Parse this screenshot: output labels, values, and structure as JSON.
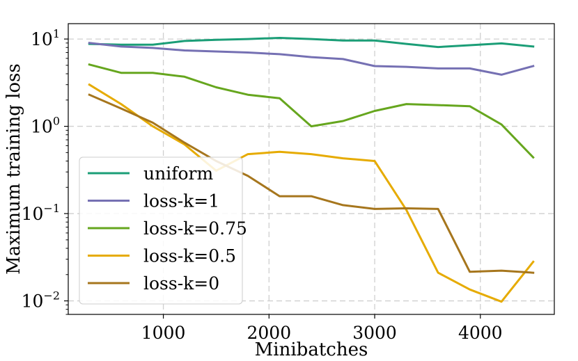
{
  "chart_data": {
    "type": "line",
    "title": "",
    "xlabel": "Minibatches",
    "ylabel": "Maximum training loss",
    "xlim": [
      100,
      4700
    ],
    "ylim": [
      0.007,
      15
    ],
    "yscale": "log",
    "grid": true,
    "legend_position": "lower-left",
    "x_ticks": [
      {
        "value": 1000,
        "label": "1000"
      },
      {
        "value": 2000,
        "label": "2000"
      },
      {
        "value": 3000,
        "label": "3000"
      },
      {
        "value": 4000,
        "label": "4000"
      }
    ],
    "y_ticks": [
      {
        "value": 10,
        "base": "10",
        "exp": "1"
      },
      {
        "value": 1,
        "base": "10",
        "exp": "0"
      },
      {
        "value": 0.1,
        "base": "10",
        "exp": "−1"
      },
      {
        "value": 0.01,
        "base": "10",
        "exp": "−2"
      }
    ],
    "x": [
      300,
      600,
      900,
      1200,
      1500,
      1800,
      2100,
      2400,
      2700,
      3000,
      3300,
      3600,
      3900,
      4200,
      4500
    ],
    "series": [
      {
        "name": "uniform",
        "color": "#1b9e77",
        "values": [
          8.8,
          8.6,
          8.6,
          9.5,
          9.8,
          10.0,
          10.3,
          10.0,
          9.6,
          9.6,
          8.8,
          8.1,
          8.5,
          8.9,
          8.2
        ]
      },
      {
        "name": "loss-k=1",
        "color": "#7570b3",
        "values": [
          9.0,
          8.2,
          7.9,
          7.4,
          7.2,
          7.0,
          6.7,
          6.2,
          5.9,
          4.9,
          4.8,
          4.6,
          4.6,
          3.9,
          4.9
        ]
      },
      {
        "name": "loss-k=0.75",
        "color": "#66a61e",
        "values": [
          5.1,
          4.1,
          4.1,
          3.7,
          2.8,
          2.3,
          2.1,
          1.0,
          1.15,
          1.5,
          1.8,
          1.75,
          1.7,
          1.05,
          0.44
        ]
      },
      {
        "name": "loss-k=0.5",
        "color": "#e6ab02",
        "values": [
          3.0,
          1.8,
          1.0,
          0.62,
          0.31,
          0.48,
          0.51,
          0.48,
          0.43,
          0.4,
          0.11,
          0.021,
          0.0135,
          0.0098,
          0.028
        ]
      },
      {
        "name": "loss-k=0",
        "color": "#a6761d",
        "values": [
          2.3,
          1.6,
          1.1,
          0.65,
          0.4,
          0.27,
          0.158,
          0.158,
          0.125,
          0.113,
          0.115,
          0.113,
          0.0215,
          0.0222,
          0.021
        ]
      }
    ]
  }
}
